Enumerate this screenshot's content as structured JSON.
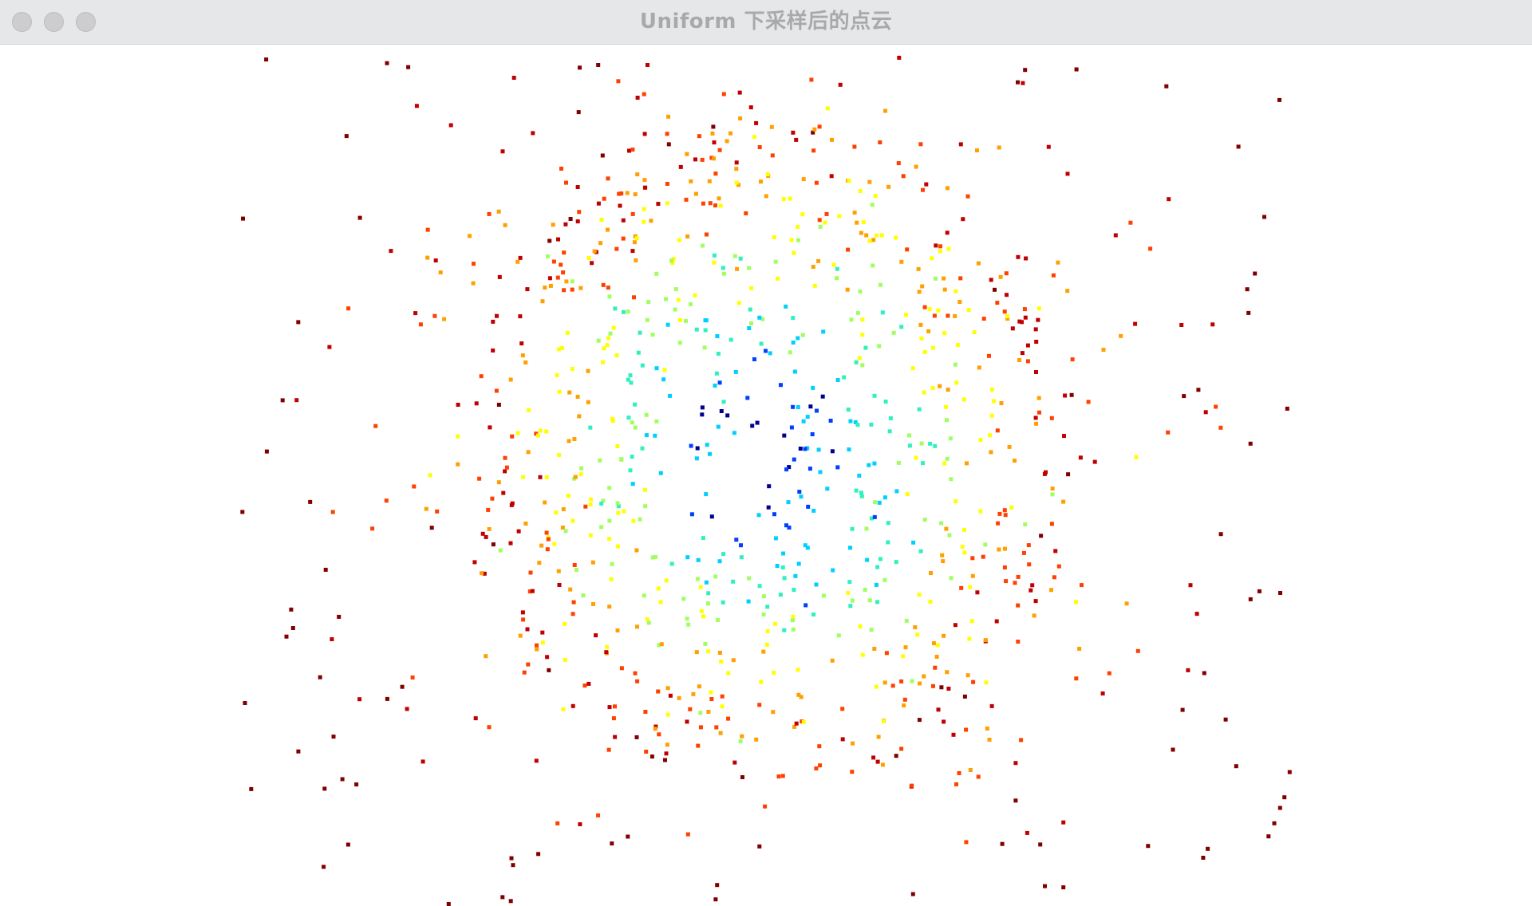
{
  "window": {
    "title": "Uniform 下采样后的点云"
  },
  "controls": {
    "close_icon": "traffic-light-close",
    "minimize_icon": "traffic-light-minimize",
    "zoom_icon": "traffic-light-zoom"
  },
  "viewport": {
    "background": "#ffffff",
    "colormap": "jet",
    "colormap_stops": [
      "#00008f",
      "#0040ff",
      "#00d0ff",
      "#30f0c0",
      "#a0ff60",
      "#ffff00",
      "#ffa000",
      "#ff4000",
      "#c00000",
      "#800000"
    ]
  }
}
